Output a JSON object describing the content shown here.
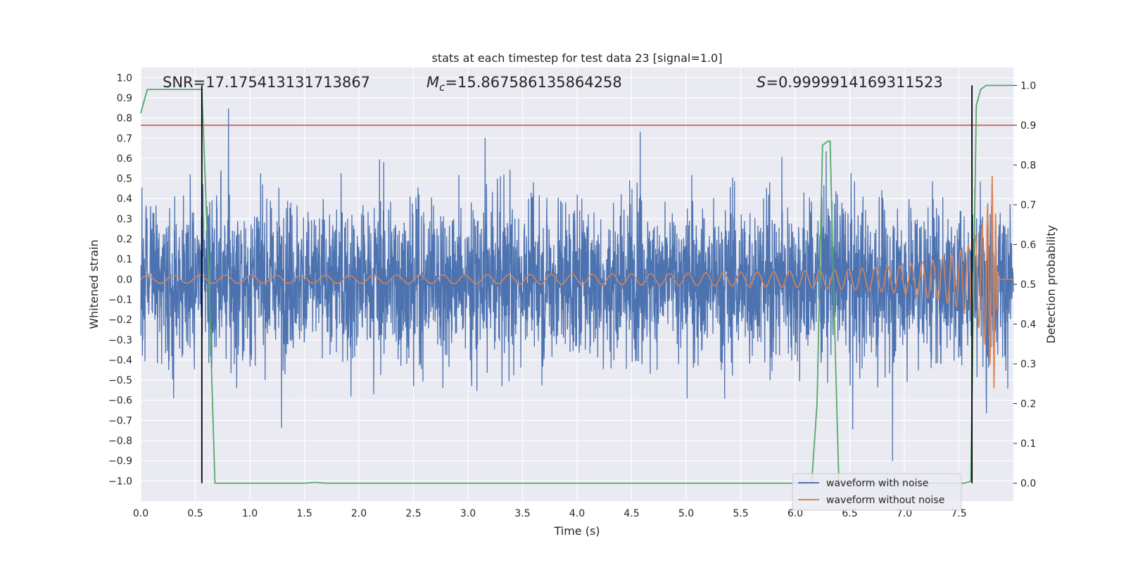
{
  "chart_data": {
    "type": "line",
    "title": "stats at each timestep for test data 23 [signal=1.0]",
    "xlabel": "Time (s)",
    "ylabel": "Whitened strain",
    "y2label": "Detection probability",
    "xlim": [
      0.0,
      8.0
    ],
    "ylim": [
      -1.1,
      1.05
    ],
    "y2lim": [
      -0.045,
      1.045
    ],
    "xticks": [
      "0.0",
      "0.5",
      "1.0",
      "1.5",
      "2.0",
      "2.5",
      "3.0",
      "3.5",
      "4.0",
      "4.5",
      "5.0",
      "5.5",
      "6.0",
      "6.5",
      "7.0",
      "7.5"
    ],
    "yticks": [
      "1.0",
      "0.9",
      "0.8",
      "0.7",
      "0.6",
      "0.5",
      "0.4",
      "0.3",
      "0.2",
      "0.1",
      "0.0",
      "-0.1",
      "-0.2",
      "-0.3",
      "-0.4",
      "-0.5",
      "-0.6",
      "-0.7",
      "-0.8",
      "-0.9",
      "-1.0"
    ],
    "y2ticks": [
      "1.0",
      "0.9",
      "0.8",
      "0.7",
      "0.6",
      "0.5",
      "0.4",
      "0.3",
      "0.2",
      "0.1",
      "0.0"
    ],
    "grid": true,
    "legend": "bottom-right",
    "annotations": {
      "snr": "SNR=17.175413131713867",
      "mc_symbol": "M",
      "mc_sub": "c",
      "mc_value": "=15.867586135864258",
      "s_symbol": "S",
      "s_value": "=0.9999914169311523"
    },
    "threshold": {
      "value": 0.9,
      "axis": "y2",
      "color": "#c44e52"
    },
    "markers": [
      0.56,
      7.62
    ],
    "series": [
      {
        "name": "waveform with noise",
        "color": "#4c72b0",
        "description_values": "noise envelope",
        "envelope_x": [
          0.0,
          1.0,
          2.0,
          3.0,
          4.0,
          5.0,
          6.0,
          7.0,
          7.5,
          7.85,
          8.0
        ],
        "envelope_amp": [
          0.36,
          0.36,
          0.36,
          0.36,
          0.36,
          0.36,
          0.36,
          0.38,
          0.4,
          0.36,
          0.36
        ]
      },
      {
        "name": "waveform without noise",
        "color": "#dd8452",
        "chirp_x": [
          0.0,
          1.0,
          2.0,
          3.0,
          4.0,
          5.0,
          6.0,
          6.5,
          7.0,
          7.3,
          7.5,
          7.6,
          7.7,
          7.78,
          7.82,
          7.86,
          8.0
        ],
        "chirp_amp": [
          0.02,
          0.02,
          0.02,
          0.022,
          0.025,
          0.03,
          0.04,
          0.05,
          0.07,
          0.1,
          0.14,
          0.18,
          0.25,
          0.4,
          0.58,
          0.0,
          0.0
        ]
      },
      {
        "name": "",
        "color": "#55a868",
        "axis": "y2",
        "x": [
          0.0,
          0.06,
          0.1,
          0.2,
          0.3,
          0.4,
          0.5,
          0.55,
          0.56,
          0.62,
          0.68,
          0.8,
          1.0,
          1.5,
          1.6,
          1.7,
          2.0,
          3.0,
          4.0,
          5.0,
          5.5,
          6.0,
          6.15,
          6.2,
          6.25,
          6.3,
          6.32,
          6.35,
          6.4,
          6.5,
          7.0,
          7.55,
          7.61,
          7.62,
          7.66,
          7.7,
          7.75,
          7.8,
          7.85,
          7.9,
          8.0
        ],
        "y": [
          0.93,
          0.99,
          0.99,
          0.99,
          0.99,
          0.99,
          0.99,
          0.99,
          0.99,
          0.55,
          0.0,
          0.0,
          0.0,
          0.0,
          0.002,
          0.0,
          0.0,
          0.0,
          0.0,
          0.0,
          0.0,
          0.0,
          0.0,
          0.2,
          0.85,
          0.86,
          0.86,
          0.5,
          0.0,
          0.0,
          0.0,
          0.0,
          0.005,
          0.2,
          0.95,
          0.99,
          1.0,
          1.0,
          1.0,
          1.0,
          1.0
        ]
      }
    ]
  }
}
